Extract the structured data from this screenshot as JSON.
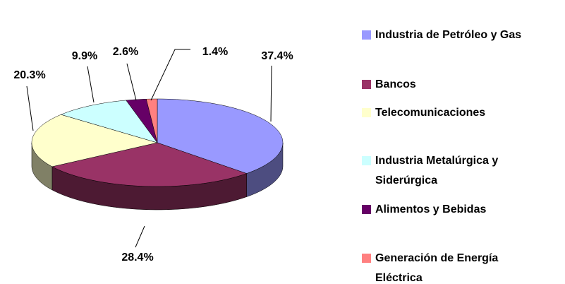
{
  "chart_data": {
    "type": "pie3d",
    "categories": [
      "Industria de Petróleo y Gas",
      "Bancos",
      "Telecomunicaciones",
      "Industria Metalúrgica y Siderúrgica",
      "Alimentos y Bebidas",
      "Generación de Energía Eléctrica"
    ],
    "values": [
      37.4,
      28.4,
      20.3,
      9.9,
      2.6,
      1.4
    ],
    "value_labels": [
      "37.4%",
      "28.4%",
      "20.3%",
      "9.9%",
      "2.6%",
      "1.4%"
    ],
    "colors": [
      "#9999ff",
      "#993366",
      "#ffffcc",
      "#ccffff",
      "#660066",
      "#ff8080"
    ],
    "legend": "right"
  }
}
